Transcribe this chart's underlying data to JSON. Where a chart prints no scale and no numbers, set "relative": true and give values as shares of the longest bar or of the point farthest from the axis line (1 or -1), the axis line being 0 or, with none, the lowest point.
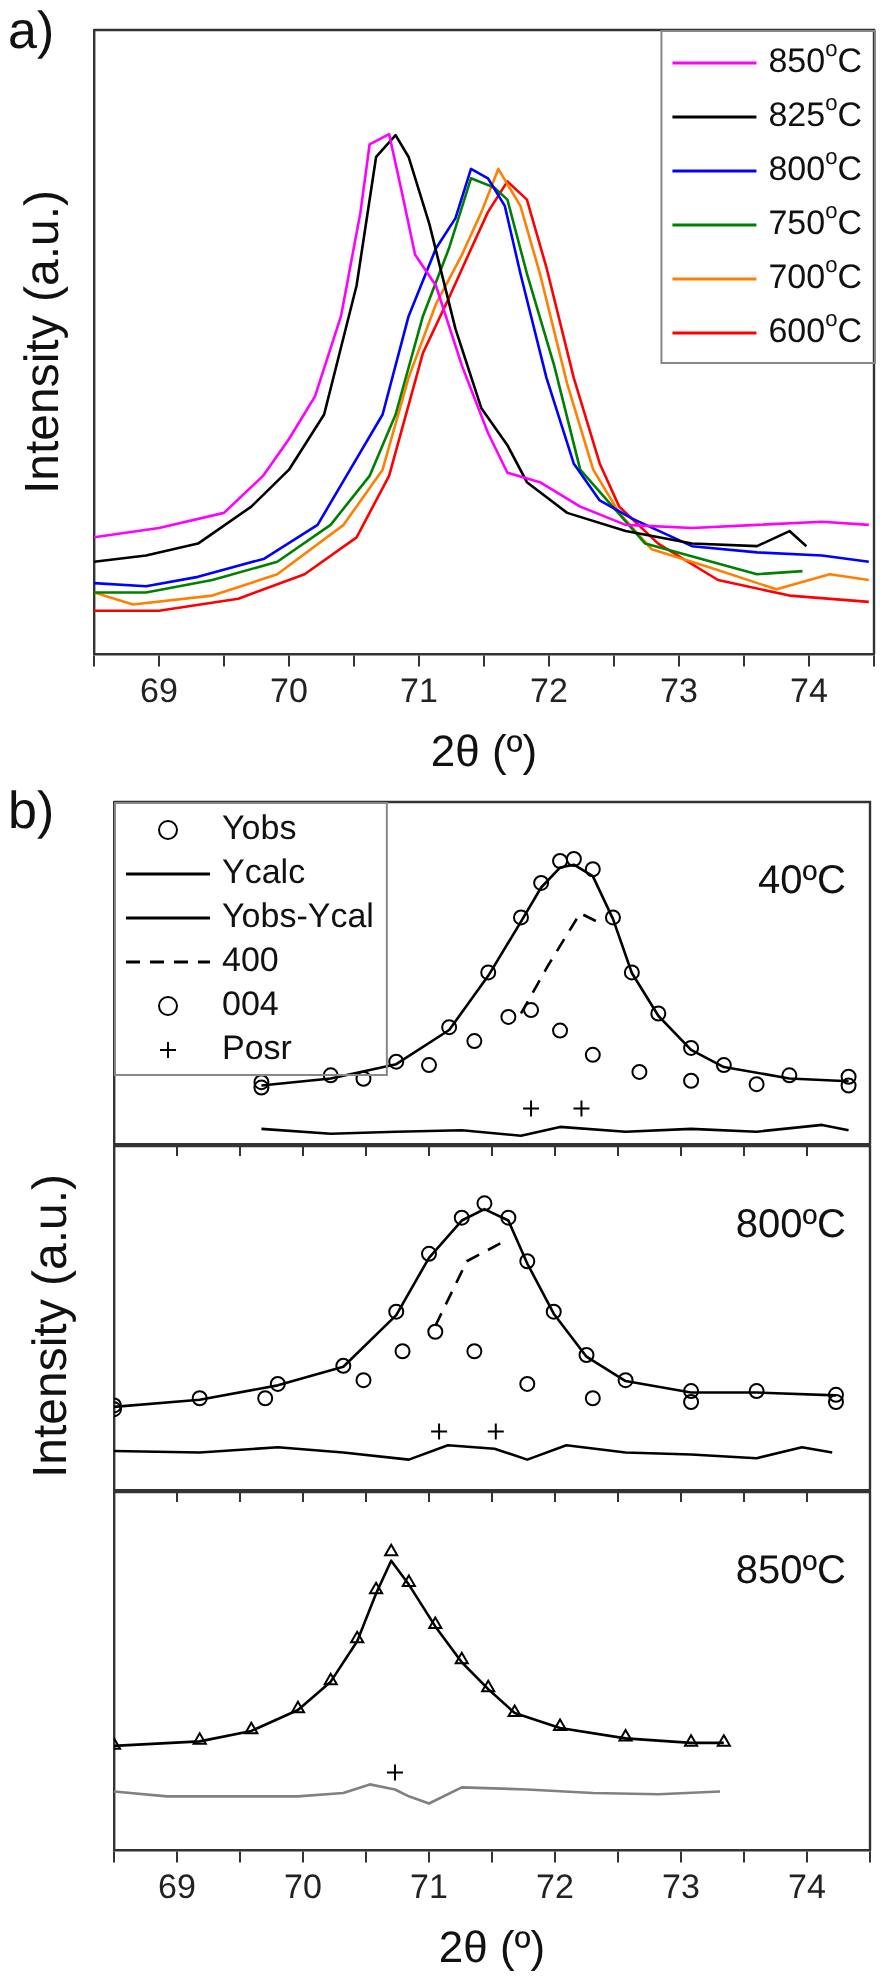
{
  "chart_data": [
    {
      "type": "line",
      "title": "a)",
      "xlabel": "2θ (º)",
      "ylabel": "Intensity (a.u.)",
      "relative": true,
      "xlim": [
        68.5,
        74.5
      ],
      "xticks": [
        {
          "value": 68.5,
          "label": null
        },
        69,
        {
          "value": 69.5,
          "label": null
        },
        70,
        {
          "value": 70.5,
          "label": null
        },
        71,
        {
          "value": 71.5,
          "label": null
        },
        72,
        {
          "value": 72.5,
          "label": null
        },
        73,
        {
          "value": 73.5,
          "label": null
        },
        74,
        {
          "value": 74.5,
          "label": null
        }
      ],
      "marker": "none",
      "line_style": "solid",
      "legend": "top right",
      "series": [
        {
          "name": "850$^{o}$C",
          "color": "#ff00ff",
          "x": [
            68.5,
            69.0,
            69.5,
            69.8,
            70.0,
            70.2,
            70.4,
            70.55,
            70.62,
            70.77,
            70.87,
            70.97,
            71.13,
            71.33,
            71.53,
            71.68,
            71.93,
            72.24,
            72.59,
            73.1,
            73.6,
            74.1,
            74.46
          ],
          "values": [
            0.225,
            0.243,
            0.272,
            0.343,
            0.414,
            0.496,
            0.65,
            0.85,
            0.98,
            1.0,
            0.886,
            0.768,
            0.709,
            0.555,
            0.426,
            0.349,
            0.331,
            0.284,
            0.249,
            0.243,
            0.249,
            0.255,
            0.249
          ]
        },
        {
          "name": "825$^{o}$C",
          "color": "#000000",
          "x": [
            68.5,
            68.9,
            69.3,
            69.71,
            70.0,
            70.27,
            70.52,
            70.67,
            70.82,
            70.92,
            71.08,
            71.28,
            71.48,
            71.68,
            71.83,
            72.14,
            72.59,
            73.1,
            73.6,
            73.85,
            73.98
          ],
          "values": [
            0.178,
            0.19,
            0.213,
            0.284,
            0.355,
            0.461,
            0.709,
            0.956,
            0.998,
            0.956,
            0.827,
            0.626,
            0.473,
            0.402,
            0.331,
            0.272,
            0.237,
            0.213,
            0.208,
            0.237,
            0.208
          ]
        },
        {
          "name": "800$^{o}$C",
          "color": "#0000ff",
          "x": [
            68.5,
            68.9,
            69.3,
            69.81,
            70.22,
            70.47,
            70.72,
            70.92,
            71.13,
            71.28,
            71.4,
            71.53,
            71.66,
            71.78,
            71.98,
            72.19,
            72.39,
            72.64,
            73.1,
            73.6,
            74.1,
            74.46
          ],
          "values": [
            0.137,
            0.131,
            0.149,
            0.184,
            0.249,
            0.355,
            0.461,
            0.65,
            0.78,
            0.838,
            0.933,
            0.915,
            0.862,
            0.732,
            0.532,
            0.367,
            0.296,
            0.261,
            0.208,
            0.196,
            0.19,
            0.178
          ]
        },
        {
          "name": "750$^{o}$C",
          "color": "#008000",
          "x": [
            68.5,
            68.9,
            69.41,
            69.91,
            70.32,
            70.62,
            70.82,
            71.03,
            71.23,
            71.4,
            71.58,
            71.68,
            71.83,
            72.04,
            72.24,
            72.49,
            72.74,
            73.25,
            73.6,
            73.95
          ],
          "values": [
            0.119,
            0.119,
            0.143,
            0.178,
            0.249,
            0.343,
            0.461,
            0.65,
            0.78,
            0.915,
            0.897,
            0.874,
            0.732,
            0.555,
            0.355,
            0.284,
            0.213,
            0.178,
            0.154,
            0.16
          ]
        },
        {
          "name": "700$^{o}$C",
          "color": "#ff8000",
          "x": [
            68.5,
            68.8,
            69.41,
            69.91,
            70.42,
            70.72,
            70.92,
            71.13,
            71.33,
            71.48,
            71.61,
            71.78,
            71.93,
            72.14,
            72.34,
            72.54,
            72.79,
            73.25,
            73.75,
            74.16,
            74.46
          ],
          "values": [
            0.119,
            0.096,
            0.113,
            0.154,
            0.249,
            0.355,
            0.532,
            0.673,
            0.768,
            0.85,
            0.933,
            0.862,
            0.732,
            0.52,
            0.355,
            0.272,
            0.202,
            0.166,
            0.125,
            0.154,
            0.143
          ]
        },
        {
          "name": "600$^{o}$C",
          "color": "#ff0000",
          "x": [
            68.5,
            69.0,
            69.61,
            70.12,
            70.52,
            70.77,
            71.03,
            71.23,
            71.38,
            71.53,
            71.68,
            71.83,
            71.98,
            72.19,
            72.39,
            72.54,
            72.84,
            73.3,
            73.85,
            74.46
          ],
          "values": [
            0.084,
            0.084,
            0.107,
            0.154,
            0.225,
            0.343,
            0.579,
            0.685,
            0.768,
            0.85,
            0.909,
            0.874,
            0.744,
            0.532,
            0.367,
            0.284,
            0.213,
            0.143,
            0.113,
            0.101
          ]
        }
      ]
    },
    {
      "type": "line",
      "title": "b)",
      "relative": true,
      "tick_labels": false,
      "xlim": [
        68.5,
        74.5
      ],
      "xticks": [
        68.5,
        69,
        69.5,
        70,
        70.5,
        71,
        71.5,
        72,
        72.5,
        73,
        73.5,
        74,
        74.5
      ],
      "legend": "top left",
      "annotations": [
        "40ºC"
      ],
      "series": [
        {
          "name": "Yobs",
          "type": "scatter",
          "marker": "circle",
          "color": "#000000",
          "x": [
            69.67,
            70.22,
            70.74,
            71.16,
            71.47,
            71.73,
            71.89,
            72.04,
            72.15,
            72.3,
            72.46,
            72.61,
            72.82,
            73.08,
            73.34,
            73.86,
            74.33
          ],
          "values": [
            0.217,
            0.241,
            0.289,
            0.41,
            0.602,
            0.795,
            0.916,
            0.993,
            1.0,
            0.964,
            0.795,
            0.602,
            0.458,
            0.337,
            0.277,
            0.241,
            0.236
          ]
        },
        {
          "name": "Ycalc",
          "type": "line",
          "marker": "none",
          "line_style": "solid",
          "color": "#000000",
          "x": [
            69.67,
            70.22,
            70.74,
            71.16,
            71.47,
            71.73,
            71.89,
            72.04,
            72.15,
            72.3,
            72.46,
            72.61,
            72.82,
            73.08,
            73.34,
            73.86,
            74.33
          ],
          "values": [
            0.205,
            0.23,
            0.28,
            0.4,
            0.59,
            0.78,
            0.9,
            0.97,
            0.98,
            0.94,
            0.79,
            0.6,
            0.45,
            0.33,
            0.27,
            0.23,
            0.22
          ]
        },
        {
          "name": "Yobs-Ycal",
          "type": "line",
          "marker": "none",
          "line_style": "solid",
          "color": "#000000",
          "x": [
            69.67,
            70.22,
            70.74,
            71.26,
            71.73,
            72.04,
            72.56,
            73.08,
            73.6,
            74.12,
            74.33
          ],
          "values": [
            0.053,
            0.036,
            0.043,
            0.048,
            0.029,
            0.06,
            0.043,
            0.053,
            0.043,
            0.067,
            0.048
          ]
        },
        {
          "name": "400",
          "type": "line",
          "marker": "none",
          "line_style": "dashed",
          "color": "#000000",
          "x": [
            71.73,
            71.95,
            72.2,
            72.38
          ],
          "values": [
            0.458,
            0.63,
            0.81,
            0.77
          ]
        },
        {
          "name": "004",
          "type": "scatter",
          "marker": "circle",
          "color": "#000000",
          "x": [
            69.67,
            70.48,
            71.0,
            71.36,
            71.63,
            71.81,
            72.04,
            72.3,
            72.67,
            73.08,
            73.6,
            74.33
          ],
          "values": [
            0.198,
            0.229,
            0.277,
            0.361,
            0.446,
            0.47,
            0.398,
            0.313,
            0.253,
            0.222,
            0.21,
            0.205
          ]
        },
        {
          "name": "Posr",
          "type": "scatter",
          "marker": "cross",
          "color": "#000000",
          "x": [
            71.81,
            72.21
          ],
          "values": [
            0.125,
            0.125
          ]
        }
      ]
    },
    {
      "type": "line",
      "ylabel": "Intensity (a.u.)",
      "relative": true,
      "tick_labels": false,
      "xlim": [
        68.5,
        74.5
      ],
      "xticks": [
        68.5,
        69,
        69.5,
        70,
        70.5,
        71,
        71.5,
        72,
        72.5,
        73,
        73.5,
        74,
        74.5
      ],
      "annotations": [
        "800ºC"
      ],
      "series": [
        {
          "type": "scatter",
          "marker": "circle",
          "color": "#000000",
          "x": [
            68.5,
            69.18,
            69.8,
            70.32,
            70.74,
            71.0,
            71.26,
            71.44,
            71.63,
            71.78,
            71.99,
            72.25,
            72.56,
            73.08,
            73.6,
            74.23
          ],
          "values": [
            0.295,
            0.32,
            0.37,
            0.433,
            0.622,
            0.824,
            0.95,
            1.0,
            0.95,
            0.798,
            0.622,
            0.471,
            0.383,
            0.345,
            0.345,
            0.332
          ]
        },
        {
          "type": "line",
          "marker": "none",
          "line_style": "solid",
          "color": "#000000",
          "x": [
            68.5,
            69.18,
            69.8,
            70.32,
            70.74,
            71.0,
            71.26,
            71.44,
            71.63,
            71.78,
            71.99,
            72.25,
            72.56,
            73.08,
            73.6,
            74.23
          ],
          "values": [
            0.29,
            0.315,
            0.365,
            0.43,
            0.61,
            0.81,
            0.94,
            0.98,
            0.94,
            0.79,
            0.615,
            0.465,
            0.38,
            0.34,
            0.34,
            0.33
          ]
        },
        {
          "type": "line",
          "marker": "none",
          "line_style": "solid",
          "color": "#000000",
          "x": [
            68.5,
            69.18,
            69.8,
            70.32,
            70.84,
            71.15,
            71.52,
            71.78,
            72.09,
            72.56,
            73.08,
            73.6,
            73.96,
            74.2
          ],
          "values": [
            0.136,
            0.131,
            0.149,
            0.131,
            0.106,
            0.156,
            0.144,
            0.106,
            0.156,
            0.131,
            0.124,
            0.111,
            0.149,
            0.131
          ]
        },
        {
          "type": "line",
          "marker": "none",
          "line_style": "dashed",
          "color": "#000000",
          "x": [
            71.05,
            71.3,
            71.57
          ],
          "values": [
            0.572,
            0.798,
            0.861
          ]
        },
        {
          "type": "scatter",
          "marker": "circle",
          "color": "#000000",
          "x": [
            68.5,
            69.7,
            70.48,
            70.79,
            71.05,
            71.36,
            71.78,
            72.3,
            73.08,
            74.23
          ],
          "values": [
            0.282,
            0.32,
            0.383,
            0.484,
            0.552,
            0.484,
            0.37,
            0.32,
            0.307,
            0.307
          ]
        },
        {
          "type": "scatter",
          "marker": "cross",
          "color": "#000000",
          "x": [
            71.08,
            71.53
          ],
          "values": [
            0.204,
            0.204
          ]
        }
      ]
    },
    {
      "type": "line",
      "xlabel": "2θ (º)",
      "relative": true,
      "xlim": [
        68.5,
        74.5
      ],
      "xticks": [
        {
          "value": 68.5,
          "label": null
        },
        69,
        {
          "value": 69.5,
          "label": null
        },
        70,
        {
          "value": 70.5,
          "label": null
        },
        71,
        {
          "value": 71.5,
          "label": null
        },
        72,
        {
          "value": 72.5,
          "label": null
        },
        73,
        {
          "value": 73.5,
          "label": null
        },
        74,
        {
          "value": 74.5,
          "label": null
        }
      ],
      "annotations": [
        "850ºC"
      ],
      "series": [
        {
          "type": "scatter",
          "marker": "triangle",
          "color": "#000000",
          "x": [
            68.5,
            69.18,
            69.59,
            69.96,
            70.22,
            70.43,
            70.58,
            70.7,
            70.84,
            71.05,
            71.26,
            71.47,
            71.68,
            72.04,
            72.56,
            73.08,
            73.34
          ],
          "values": [
            0.352,
            0.369,
            0.404,
            0.474,
            0.568,
            0.709,
            0.873,
            1.0,
            0.897,
            0.756,
            0.638,
            0.545,
            0.462,
            0.415,
            0.38,
            0.362,
            0.362
          ]
        },
        {
          "type": "line",
          "marker": "none",
          "line_style": "solid",
          "color": "#000000",
          "x": [
            68.5,
            69.18,
            69.59,
            69.96,
            70.22,
            70.43,
            70.58,
            70.7,
            70.84,
            71.05,
            71.26,
            71.47,
            71.68,
            72.04,
            72.56,
            73.08,
            73.34
          ],
          "values": [
            0.35,
            0.365,
            0.4,
            0.47,
            0.565,
            0.7,
            0.86,
            0.97,
            0.89,
            0.75,
            0.63,
            0.54,
            0.46,
            0.41,
            0.375,
            0.36,
            0.36
          ]
        },
        {
          "type": "line",
          "marker": "none",
          "line_style": "solid",
          "color": "#808080",
          "x": [
            68.5,
            68.92,
            69.44,
            69.96,
            70.32,
            70.53,
            70.73,
            70.84,
            71.0,
            71.26,
            71.78,
            72.3,
            72.82,
            73.31
          ],
          "values": [
            0.197,
            0.181,
            0.181,
            0.181,
            0.192,
            0.221,
            0.204,
            0.181,
            0.157,
            0.211,
            0.204,
            0.192,
            0.188,
            0.197
          ]
        },
        {
          "type": "scatter",
          "marker": "cross",
          "color": "#000000",
          "x": [
            70.73
          ],
          "values": [
            0.261
          ]
        }
      ]
    }
  ]
}
